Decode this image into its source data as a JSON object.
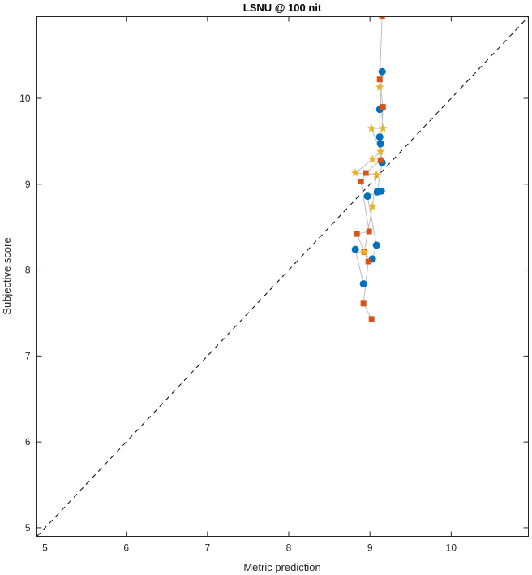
{
  "chart_data": {
    "type": "scatter",
    "title": "LSNU @ 100 nit",
    "xlabel": "Metric prediction",
    "ylabel": "Subjective score",
    "xlim": [
      4.9,
      10.95
    ],
    "ylim": [
      4.9,
      10.95
    ],
    "xticks": [
      5,
      6,
      7,
      8,
      9,
      10
    ],
    "yticks": [
      5,
      6,
      7,
      8,
      9,
      10
    ],
    "grid": false,
    "legend": "none",
    "reference_line": {
      "style": "dashed",
      "color": "#000000",
      "from": [
        4.9,
        4.9
      ],
      "to": [
        10.95,
        10.95
      ]
    },
    "connector_color": "#bdbdbd",
    "series": [
      {
        "marker": "circle",
        "color": "#0072BD",
        "points": [
          [
            9.15,
            10.31
          ],
          [
            9.12,
            9.87
          ],
          [
            9.12,
            9.55
          ],
          [
            9.13,
            9.47
          ],
          [
            9.15,
            9.25
          ],
          [
            9.09,
            8.91
          ],
          [
            9.14,
            8.92
          ],
          [
            8.97,
            8.86
          ],
          [
            9.08,
            8.29
          ],
          [
            9.03,
            8.13
          ],
          [
            8.82,
            8.24
          ],
          [
            8.92,
            7.84
          ]
        ]
      },
      {
        "marker": "square",
        "color": "#D95319",
        "points": [
          [
            9.15,
            10.95
          ],
          [
            9.12,
            10.22
          ],
          [
            9.16,
            9.9
          ],
          [
            9.13,
            9.28
          ],
          [
            8.95,
            9.13
          ],
          [
            8.89,
            9.03
          ],
          [
            8.99,
            8.45
          ],
          [
            8.84,
            8.42
          ],
          [
            8.93,
            8.21
          ],
          [
            8.98,
            8.1
          ],
          [
            8.92,
            7.61
          ],
          [
            9.02,
            7.43
          ]
        ]
      },
      {
        "marker": "star",
        "color": "#EDB120",
        "points": [
          [
            9.12,
            10.13
          ],
          [
            9.16,
            9.65
          ],
          [
            9.02,
            9.65
          ],
          [
            9.13,
            9.38
          ],
          [
            9.03,
            9.29
          ],
          [
            8.82,
            9.13
          ],
          [
            9.08,
            9.11
          ],
          [
            9.03,
            8.74
          ],
          [
            8.93,
            8.21
          ]
        ]
      }
    ]
  }
}
